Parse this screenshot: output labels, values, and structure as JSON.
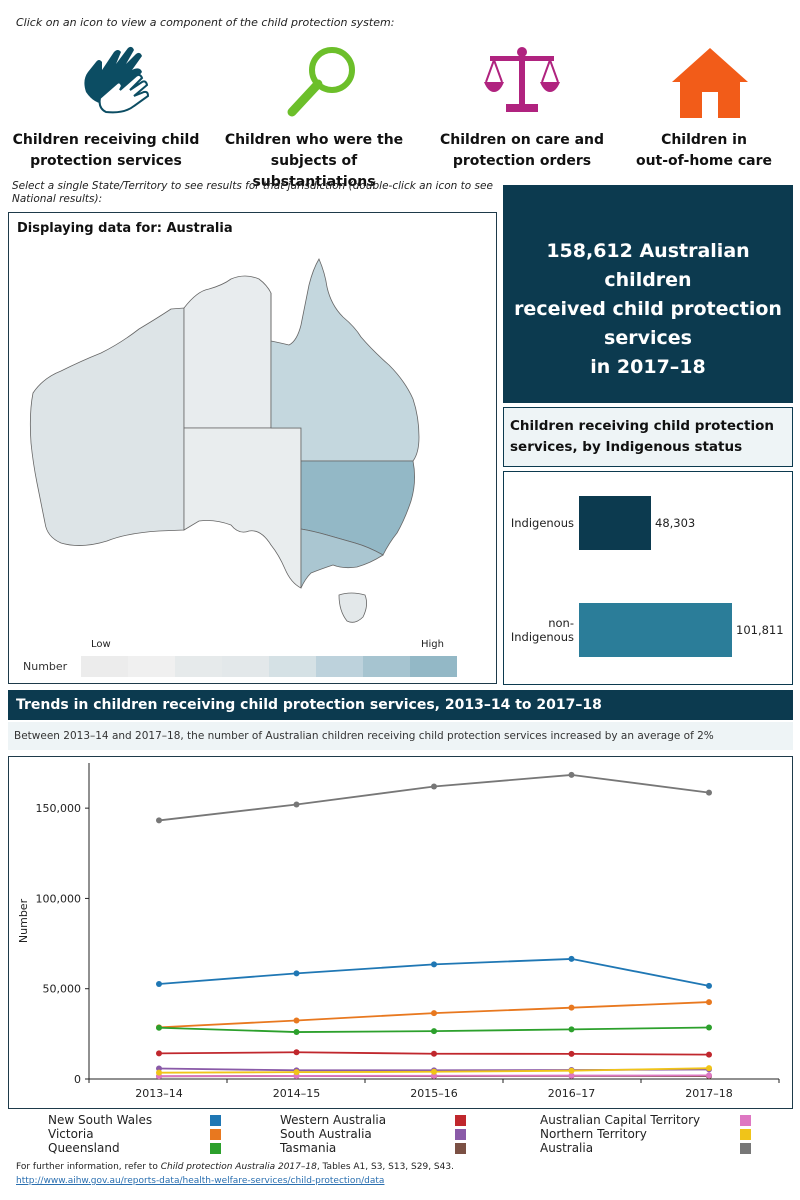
{
  "instruction": "Click on an icon to view a component of the child protection system:",
  "nav": [
    {
      "label_line1": "Children receiving child",
      "label_line2": "protection services",
      "icon": "hands-icon",
      "color": "#0c4d63"
    },
    {
      "label_line1": "Children who were the",
      "label_line2": "subjects of substantiations",
      "icon": "magnifier-icon",
      "color": "#6cbf2a"
    },
    {
      "label_line1": "Children on care and",
      "label_line2": "protection orders",
      "icon": "scales-icon",
      "color": "#b0237f"
    },
    {
      "label_line1": "Children in",
      "label_line2": "out-of-home care",
      "icon": "house-icon",
      "color": "#f25c19"
    }
  ],
  "select_hint": "Select a  single State/Territory  to see results for that jurisdiction (double-click an icon to see National results):",
  "map": {
    "title": "Displaying data for: Australia",
    "legend_low": "Low",
    "legend_high": "High",
    "legend_label": "Number",
    "legend_colors": [
      "#ececec",
      "#f0f0f0",
      "#e6eaeb",
      "#e3e8ea",
      "#d5e1e5",
      "#bdd2dc",
      "#a6c4d0",
      "#93b8c6"
    ],
    "state_colors": {
      "WA": "#dde4e7",
      "NT": "#e8ecee",
      "SA": "#e9edee",
      "QLD": "#c4d7de",
      "NSW": "#93b8c6",
      "VIC": "#aac6d1",
      "TAS": "#e3e8ea"
    }
  },
  "headline": {
    "line1": "158,612 Australian children",
    "line2": "received child protection",
    "line3": "services",
    "line4": "in 2017–18"
  },
  "indigenous": {
    "title_line1": "Children receiving child protection",
    "title_line2": "services, by Indigenous status",
    "bars": [
      {
        "label_line1": "Indigenous",
        "label_line2": "",
        "value": 48303,
        "value_label": "48,303",
        "color": "#0c3a4f"
      },
      {
        "label_line1": "non-",
        "label_line2": "Indigenous",
        "value": 101811,
        "value_label": "101,811",
        "color": "#2b7d99"
      }
    ]
  },
  "trends": {
    "header": "Trends in children receiving child protection services, 2013–14 to 2017–18",
    "subheader": "Between 2013–14 and 2017–18, the number of Australian children receiving child protection services increased by an average of 2%"
  },
  "chart_data": {
    "type": "line",
    "x": [
      "2013–14",
      "2014–15",
      "2015–16",
      "2016–17",
      "2017–18"
    ],
    "ylabel": "Number",
    "ylim": [
      0,
      175000
    ],
    "yticks": [
      0,
      50000,
      100000,
      150000
    ],
    "ytick_labels": [
      "0",
      "50,000",
      "100,000",
      "150,000"
    ],
    "series": [
      {
        "name": "Australia",
        "color": "#777777",
        "values": [
          143200,
          152000,
          162000,
          168400,
          158612
        ]
      },
      {
        "name": "New South Wales",
        "color": "#1f77b4",
        "values": [
          52600,
          58500,
          63500,
          66500,
          51600
        ]
      },
      {
        "name": "Victoria",
        "color": "#e8781f",
        "values": [
          28600,
          32400,
          36500,
          39500,
          42600
        ]
      },
      {
        "name": "Queensland",
        "color": "#2ca02c",
        "values": [
          28400,
          26000,
          26500,
          27500,
          28500
        ]
      },
      {
        "name": "Western Australia",
        "color": "#c0272d",
        "values": [
          14200,
          14800,
          14000,
          13900,
          13500
        ]
      },
      {
        "name": "South Australia",
        "color": "#8a5aa8",
        "values": [
          5800,
          4800,
          4800,
          5000,
          5300
        ]
      },
      {
        "name": "Tasmania",
        "color": "#7b5044",
        "values": [
          1500,
          1700,
          1600,
          1700,
          1600
        ]
      },
      {
        "name": "Australian Capital Territory",
        "color": "#de77c2",
        "values": [
          1600,
          1700,
          1800,
          1900,
          2000
        ]
      },
      {
        "name": "Northern Territory",
        "color": "#f0c419",
        "values": [
          3500,
          3800,
          4000,
          4600,
          6000
        ]
      }
    ],
    "legend": [
      {
        "name": "New South Wales",
        "color": "#1f77b4"
      },
      {
        "name": "Victoria",
        "color": "#e8781f"
      },
      {
        "name": "Queensland",
        "color": "#2ca02c"
      },
      {
        "name": "Western Australia",
        "color": "#c0272d"
      },
      {
        "name": "South Australia",
        "color": "#8a5aa8"
      },
      {
        "name": "Tasmania",
        "color": "#7b5044"
      },
      {
        "name": "Australian Capital Territory",
        "color": "#de77c2"
      },
      {
        "name": "Northern Territory",
        "color": "#f0c419"
      },
      {
        "name": "Australia",
        "color": "#777777"
      }
    ],
    "legend_placement": "bottom"
  },
  "footnote": {
    "prefix": "For further information, refer to ",
    "title": "Child protection Australia 2017–18",
    "suffix": ", Tables A1, S3, S13, S29, S43.",
    "link": "http://www.aihw.gov.au/reports-data/health-welfare-services/child-protection/data"
  }
}
